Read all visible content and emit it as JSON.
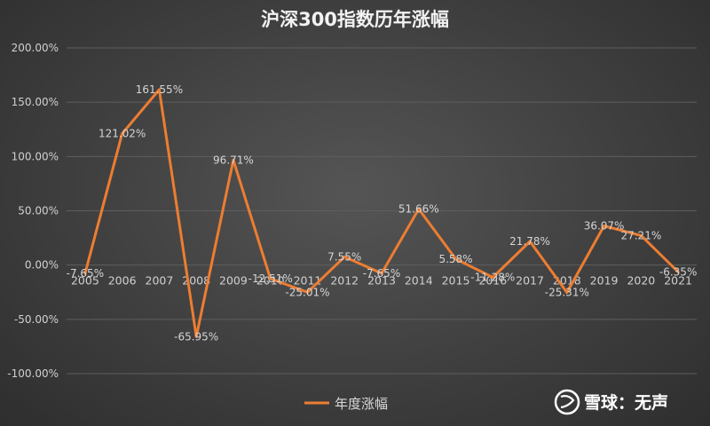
{
  "chart_data": {
    "type": "line",
    "title": "沪深300指数历年涨幅",
    "categories": [
      "2005",
      "2006",
      "2007",
      "2008",
      "2009",
      "2010",
      "2011",
      "2012",
      "2013",
      "2014",
      "2015",
      "2016",
      "2017",
      "2018",
      "2019",
      "2020",
      "2021"
    ],
    "series": [
      {
        "name": "年度涨幅",
        "values": [
          -7.65,
          121.02,
          161.55,
          -65.95,
          96.71,
          -12.51,
          -25.01,
          7.55,
          -7.65,
          51.66,
          5.58,
          -11.28,
          21.78,
          -25.31,
          36.07,
          27.21,
          -6.35
        ],
        "labels": [
          "-7.65%",
          "121.02%",
          "161.55%",
          "-65.95%",
          "96.71%",
          "-12.51%",
          "-25.01%",
          "7.55%",
          "-7.65%",
          "51.66%",
          "5.58%",
          "-11.28%",
          "21.78%",
          "-25.31%",
          "36.07%",
          "27.21%",
          "-6.35%"
        ],
        "color": "#ed7d31"
      }
    ],
    "yticks": [
      "200.00%",
      "150.00%",
      "100.00%",
      "50.00%",
      "0.00%",
      "-50.00%",
      "-100.00%"
    ],
    "ylim": [
      -100,
      200
    ],
    "grid": true,
    "legend_position": "bottom"
  },
  "watermark": {
    "text": "雪球：无声",
    "icon": "snowball-logo-icon"
  }
}
